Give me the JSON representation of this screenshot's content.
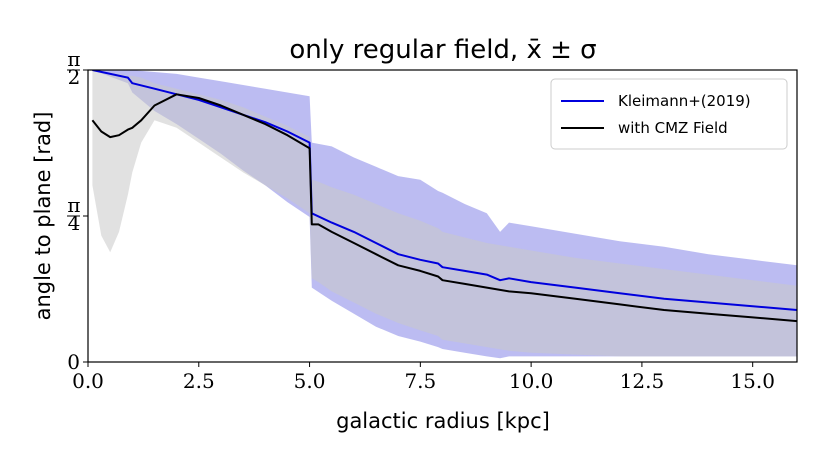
{
  "chart_data": {
    "type": "line",
    "title": "only regular field, x̄ ± σ",
    "xlabel": "galactic radius [kpc]",
    "ylabel": "angle to plane [rad]",
    "xlim": [
      0,
      16
    ],
    "ylim": [
      0,
      1.5708
    ],
    "x_ticks": [
      {
        "value": 0.0,
        "label": "0.0"
      },
      {
        "value": 2.5,
        "label": "2.5"
      },
      {
        "value": 5.0,
        "label": "5.0"
      },
      {
        "value": 7.5,
        "label": "7.5"
      },
      {
        "value": 10.0,
        "label": "10.0"
      },
      {
        "value": 12.5,
        "label": "12.5"
      },
      {
        "value": 15.0,
        "label": "15.0"
      }
    ],
    "y_ticks": [
      {
        "value": 0,
        "label": "0"
      },
      {
        "value": 0.7854,
        "num": "π",
        "den": "4"
      },
      {
        "value": 1.5708,
        "num": "π",
        "den": "2"
      }
    ],
    "legend_position": "upper-right",
    "series": [
      {
        "name": "Kleimann+(2019)",
        "color": "#0000dd",
        "band_color": "#b0b0f0",
        "x": [
          0.1,
          0.9,
          1.0,
          1.5,
          2.0,
          2.5,
          3.0,
          3.5,
          4.0,
          4.5,
          5.0,
          5.05,
          5.5,
          6.0,
          6.5,
          7.0,
          7.5,
          7.9,
          8.0,
          8.5,
          9.0,
          9.3,
          9.5,
          10.0,
          11.0,
          12.0,
          13.0,
          14.0,
          15.0,
          16.0
        ],
        "y": [
          1.5708,
          1.53,
          1.5,
          1.47,
          1.44,
          1.41,
          1.37,
          1.33,
          1.29,
          1.24,
          1.18,
          0.8,
          0.75,
          0.7,
          0.64,
          0.58,
          0.55,
          0.53,
          0.51,
          0.49,
          0.47,
          0.44,
          0.45,
          0.43,
          0.4,
          0.37,
          0.34,
          0.32,
          0.3,
          0.28
        ],
        "upper": [
          1.5708,
          1.57,
          1.57,
          1.56,
          1.55,
          1.53,
          1.51,
          1.49,
          1.47,
          1.45,
          1.43,
          1.18,
          1.16,
          1.1,
          1.05,
          1.0,
          0.98,
          0.92,
          0.91,
          0.85,
          0.8,
          0.7,
          0.75,
          0.73,
          0.69,
          0.65,
          0.62,
          0.58,
          0.55,
          0.52
        ],
        "lower": [
          1.5708,
          1.5,
          1.45,
          1.35,
          1.28,
          1.2,
          1.12,
          1.03,
          0.95,
          0.86,
          0.78,
          0.4,
          0.33,
          0.26,
          0.19,
          0.14,
          0.11,
          0.08,
          0.07,
          0.05,
          0.03,
          0.02,
          0.03,
          0.03,
          0.03,
          0.03,
          0.03,
          0.03,
          0.03,
          0.03
        ]
      },
      {
        "name": "with CMZ Field",
        "color": "#000000",
        "band_color": "#c8c8c8",
        "x": [
          0.1,
          0.3,
          0.5,
          0.7,
          0.9,
          1.0,
          1.2,
          1.5,
          2.0,
          2.5,
          3.0,
          3.5,
          4.0,
          4.5,
          5.0,
          5.05,
          5.2,
          5.5,
          6.0,
          6.5,
          7.0,
          7.5,
          7.9,
          8.0,
          8.5,
          9.0,
          9.5,
          10.0,
          11.0,
          12.0,
          13.0,
          14.0,
          15.0,
          16.0
        ],
        "y": [
          1.3,
          1.24,
          1.21,
          1.22,
          1.25,
          1.26,
          1.3,
          1.38,
          1.44,
          1.42,
          1.38,
          1.33,
          1.28,
          1.22,
          1.15,
          0.74,
          0.74,
          0.7,
          0.64,
          0.58,
          0.52,
          0.49,
          0.46,
          0.44,
          0.42,
          0.4,
          0.38,
          0.37,
          0.34,
          0.31,
          0.28,
          0.26,
          0.24,
          0.22
        ],
        "upper": [
          1.5708,
          1.56,
          1.55,
          1.55,
          1.54,
          1.54,
          1.53,
          1.5,
          1.47,
          1.44,
          1.41,
          1.37,
          1.32,
          1.27,
          1.21,
          0.98,
          0.97,
          0.94,
          0.9,
          0.85,
          0.8,
          0.76,
          0.72,
          0.7,
          0.67,
          0.64,
          0.62,
          0.6,
          0.56,
          0.53,
          0.5,
          0.47,
          0.44,
          0.41
        ],
        "lower": [
          0.95,
          0.68,
          0.59,
          0.7,
          0.9,
          1.02,
          1.18,
          1.3,
          1.26,
          1.18,
          1.1,
          1.02,
          0.95,
          0.88,
          0.8,
          0.45,
          0.43,
          0.38,
          0.32,
          0.26,
          0.21,
          0.17,
          0.14,
          0.12,
          0.1,
          0.08,
          0.06,
          0.05,
          0.04,
          0.03,
          0.03,
          0.03,
          0.03,
          0.03
        ]
      }
    ]
  }
}
